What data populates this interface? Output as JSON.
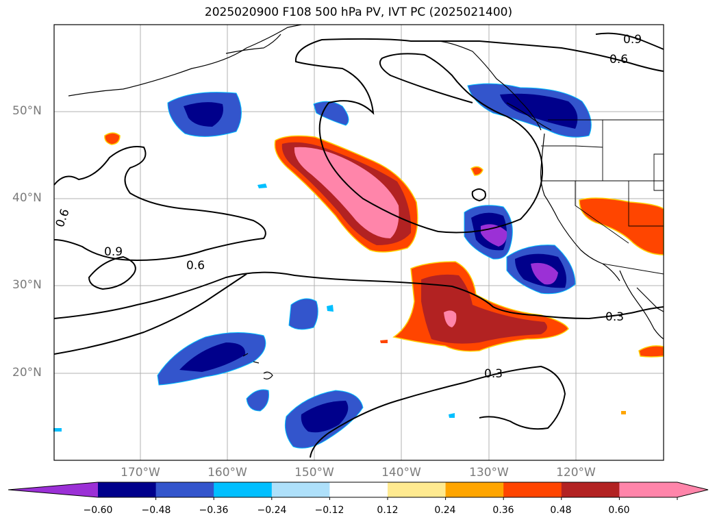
{
  "title": "2025020900 F108 500 hPa PV, IVT PC (2025021400)",
  "lat_labels": [
    "50°N",
    "40°N",
    "30°N",
    "20°N"
  ],
  "lon_labels": [
    "170°W",
    "160°W",
    "150°W",
    "140°W",
    "130°W",
    "120°W"
  ],
  "contour_labels": [
    "0.9",
    "0.6",
    "0.6",
    "0.9",
    "0.6",
    "0.3",
    "0.3"
  ],
  "colorbar": {
    "ticks": [
      "−0.60",
      "−0.48",
      "−0.36",
      "−0.24",
      "−0.12",
      "0.12",
      "0.24",
      "0.36",
      "0.48",
      "0.60"
    ],
    "colors": [
      "#9b30d6",
      "#00008b",
      "#3355cc",
      "#00bfff",
      "#aee0fa",
      "#ffffff",
      "#ffea90",
      "#ffa500",
      "#ff4500",
      "#b22222",
      "#ff85aa",
      "#ff85aa"
    ]
  }
}
